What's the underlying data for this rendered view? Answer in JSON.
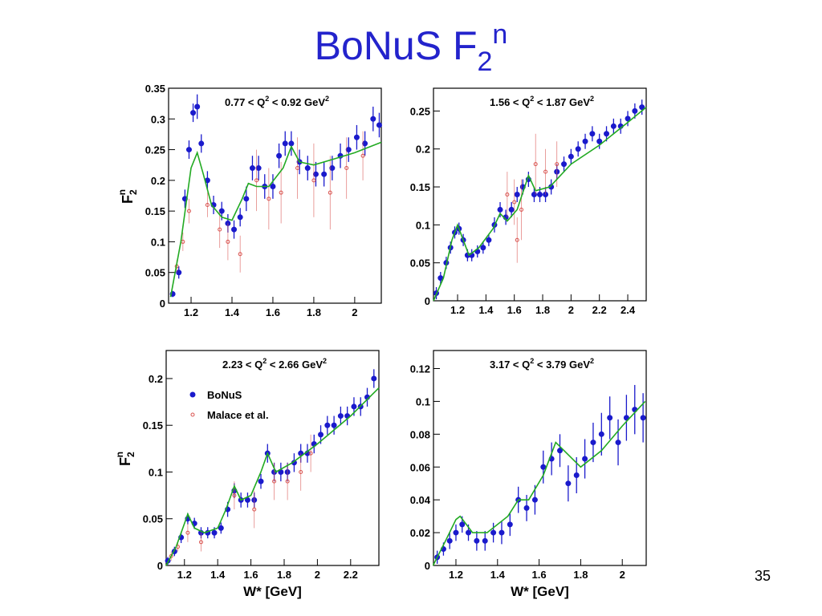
{
  "title": {
    "main": "BoNuS F",
    "sub": "2",
    "sup": "n"
  },
  "page_number": "35",
  "chart_data": [
    {
      "type": "scatter",
      "annotation": [
        "0.77 < Q",
        "2",
        " < 0.92 GeV",
        "2"
      ],
      "ylabel": {
        "main": "F",
        "sub": "2",
        "sup": "n"
      },
      "xlim": [
        1.09,
        2.13
      ],
      "ylim": [
        0,
        0.35
      ],
      "xticks": [
        1.2,
        1.4,
        1.6,
        1.8,
        2
      ],
      "yticks": [
        0,
        0.05,
        0.1,
        0.15,
        0.2,
        0.25,
        0.3,
        0.35
      ],
      "series": [
        {
          "color": "#1a1acc",
          "style": "filled-circle",
          "x": [
            1.11,
            1.14,
            1.17,
            1.19,
            1.21,
            1.23,
            1.25,
            1.28,
            1.31,
            1.35,
            1.38,
            1.41,
            1.44,
            1.47,
            1.5,
            1.53,
            1.56,
            1.6,
            1.63,
            1.66,
            1.69,
            1.73,
            1.77,
            1.81,
            1.85,
            1.89,
            1.93,
            1.97,
            2.01,
            2.05,
            2.09,
            2.12
          ],
          "values": [
            0.015,
            0.05,
            0.17,
            0.25,
            0.31,
            0.32,
            0.26,
            0.2,
            0.16,
            0.15,
            0.13,
            0.12,
            0.14,
            0.17,
            0.22,
            0.22,
            0.19,
            0.19,
            0.24,
            0.26,
            0.26,
            0.23,
            0.22,
            0.21,
            0.21,
            0.22,
            0.24,
            0.25,
            0.27,
            0.26,
            0.3,
            0.29
          ],
          "errors": [
            0.005,
            0.01,
            0.015,
            0.015,
            0.015,
            0.02,
            0.015,
            0.015,
            0.015,
            0.015,
            0.015,
            0.015,
            0.015,
            0.02,
            0.02,
            0.02,
            0.02,
            0.02,
            0.02,
            0.02,
            0.02,
            0.02,
            0.02,
            0.02,
            0.02,
            0.02,
            0.02,
            0.02,
            0.02,
            0.02,
            0.02,
            0.02
          ]
        },
        {
          "color": "#d9534f",
          "style": "open-circle",
          "x": [
            1.13,
            1.16,
            1.19,
            1.28,
            1.34,
            1.38,
            1.44,
            1.52,
            1.58,
            1.64,
            1.72,
            1.8,
            1.88,
            1.96,
            2.04
          ],
          "values": [
            0.06,
            0.1,
            0.15,
            0.16,
            0.12,
            0.1,
            0.08,
            0.2,
            0.17,
            0.18,
            0.22,
            0.2,
            0.18,
            0.22,
            0.24
          ],
          "errors": [
            0.01,
            0.015,
            0.02,
            0.02,
            0.03,
            0.03,
            0.03,
            0.05,
            0.05,
            0.05,
            0.05,
            0.06,
            0.06,
            0.05,
            0.04
          ]
        },
        {
          "color": "#22aa22",
          "style": "line",
          "x": [
            1.1,
            1.15,
            1.2,
            1.23,
            1.26,
            1.3,
            1.35,
            1.4,
            1.45,
            1.48,
            1.52,
            1.58,
            1.65,
            1.69,
            1.73,
            1.8,
            1.9,
            2.0,
            2.13
          ],
          "values": [
            0.01,
            0.1,
            0.22,
            0.245,
            0.21,
            0.16,
            0.14,
            0.135,
            0.17,
            0.195,
            0.19,
            0.19,
            0.22,
            0.255,
            0.23,
            0.225,
            0.235,
            0.245,
            0.262
          ]
        }
      ]
    },
    {
      "type": "scatter",
      "annotation": [
        "1.56 < Q",
        "2",
        " < 1.87 GeV",
        "2"
      ],
      "xlim": [
        1.03,
        2.53
      ],
      "ylim": [
        0,
        0.28
      ],
      "xticks": [
        1.2,
        1.4,
        1.6,
        1.8,
        2,
        2.2,
        2.4
      ],
      "yticks": [
        0,
        0.05,
        0.1,
        0.15,
        0.2,
        0.25
      ],
      "series": [
        {
          "color": "#1a1acc",
          "style": "filled-circle",
          "x": [
            1.05,
            1.08,
            1.12,
            1.15,
            1.18,
            1.21,
            1.24,
            1.27,
            1.3,
            1.34,
            1.38,
            1.42,
            1.46,
            1.5,
            1.54,
            1.58,
            1.62,
            1.66,
            1.7,
            1.74,
            1.78,
            1.82,
            1.86,
            1.9,
            1.95,
            2.0,
            2.05,
            2.1,
            2.15,
            2.2,
            2.25,
            2.3,
            2.35,
            2.4,
            2.45,
            2.5
          ],
          "values": [
            0.01,
            0.03,
            0.05,
            0.07,
            0.09,
            0.095,
            0.08,
            0.06,
            0.06,
            0.065,
            0.07,
            0.08,
            0.1,
            0.12,
            0.11,
            0.12,
            0.14,
            0.15,
            0.16,
            0.14,
            0.14,
            0.14,
            0.15,
            0.17,
            0.18,
            0.19,
            0.2,
            0.21,
            0.22,
            0.21,
            0.22,
            0.23,
            0.23,
            0.24,
            0.25,
            0.255
          ],
          "errors": [
            0.008,
            0.008,
            0.008,
            0.008,
            0.008,
            0.008,
            0.008,
            0.008,
            0.008,
            0.008,
            0.008,
            0.008,
            0.01,
            0.01,
            0.01,
            0.01,
            0.01,
            0.01,
            0.01,
            0.01,
            0.01,
            0.01,
            0.01,
            0.01,
            0.01,
            0.01,
            0.01,
            0.01,
            0.01,
            0.01,
            0.01,
            0.01,
            0.01,
            0.01,
            0.01,
            0.01
          ]
        },
        {
          "color": "#d9534f",
          "style": "open-circle",
          "x": [
            1.55,
            1.6,
            1.62,
            1.65,
            1.75,
            1.82,
            1.9
          ],
          "values": [
            0.14,
            0.13,
            0.08,
            0.12,
            0.18,
            0.17,
            0.18
          ],
          "errors": [
            0.03,
            0.03,
            0.03,
            0.04,
            0.04,
            0.03,
            0.03
          ]
        },
        {
          "color": "#22aa22",
          "style": "line",
          "x": [
            1.03,
            1.1,
            1.16,
            1.2,
            1.24,
            1.28,
            1.35,
            1.45,
            1.5,
            1.55,
            1.62,
            1.7,
            1.75,
            1.85,
            2.0,
            2.2,
            2.4,
            2.53
          ],
          "values": [
            0,
            0.03,
            0.08,
            0.1,
            0.08,
            0.06,
            0.07,
            0.095,
            0.115,
            0.105,
            0.12,
            0.165,
            0.145,
            0.15,
            0.18,
            0.205,
            0.235,
            0.255
          ]
        }
      ]
    },
    {
      "type": "scatter",
      "annotation": [
        "2.23 < Q",
        "2",
        " < 2.66 GeV",
        "2"
      ],
      "ylabel": {
        "main": "F",
        "sub": "2",
        "sup": "n"
      },
      "xlabel": "W* [GeV]",
      "xlim": [
        1.09,
        2.37
      ],
      "ylim": [
        0,
        0.23
      ],
      "xticks": [
        1.2,
        1.4,
        1.6,
        1.8,
        2,
        2.2
      ],
      "yticks": [
        0,
        0.05,
        0.1,
        0.15,
        0.2
      ],
      "series": [
        {
          "name": "BoNuS",
          "color": "#1a1acc",
          "style": "filled-circle",
          "x": [
            1.1,
            1.14,
            1.18,
            1.22,
            1.26,
            1.3,
            1.34,
            1.38,
            1.42,
            1.46,
            1.5,
            1.54,
            1.58,
            1.62,
            1.66,
            1.7,
            1.74,
            1.78,
            1.82,
            1.86,
            1.9,
            1.94,
            1.98,
            2.02,
            2.06,
            2.1,
            2.14,
            2.18,
            2.22,
            2.26,
            2.3,
            2.34
          ],
          "values": [
            0.005,
            0.015,
            0.03,
            0.05,
            0.045,
            0.035,
            0.035,
            0.035,
            0.04,
            0.06,
            0.08,
            0.07,
            0.07,
            0.07,
            0.09,
            0.12,
            0.1,
            0.1,
            0.1,
            0.11,
            0.12,
            0.12,
            0.13,
            0.14,
            0.15,
            0.15,
            0.16,
            0.16,
            0.17,
            0.17,
            0.18,
            0.2
          ],
          "errors": [
            0.004,
            0.005,
            0.006,
            0.006,
            0.006,
            0.006,
            0.006,
            0.006,
            0.006,
            0.008,
            0.008,
            0.008,
            0.008,
            0.008,
            0.008,
            0.01,
            0.01,
            0.01,
            0.01,
            0.01,
            0.01,
            0.01,
            0.01,
            0.01,
            0.01,
            0.01,
            0.01,
            0.01,
            0.01,
            0.01,
            0.01,
            0.01
          ]
        },
        {
          "name": "Malace et al.",
          "color": "#d9534f",
          "style": "open-circle",
          "x": [
            1.12,
            1.16,
            1.22,
            1.3,
            1.5,
            1.62,
            1.74,
            1.82,
            1.9,
            1.96
          ],
          "values": [
            0.01,
            0.02,
            0.035,
            0.025,
            0.075,
            0.06,
            0.09,
            0.09,
            0.1,
            0.12
          ],
          "errors": [
            0.005,
            0.005,
            0.01,
            0.01,
            0.015,
            0.02,
            0.02,
            0.02,
            0.02,
            0.02
          ]
        },
        {
          "color": "#22aa22",
          "style": "line",
          "x": [
            1.09,
            1.15,
            1.2,
            1.22,
            1.26,
            1.32,
            1.4,
            1.45,
            1.5,
            1.54,
            1.6,
            1.66,
            1.7,
            1.75,
            1.85,
            2.0,
            2.2,
            2.37
          ],
          "values": [
            0,
            0.02,
            0.045,
            0.055,
            0.04,
            0.035,
            0.04,
            0.06,
            0.085,
            0.07,
            0.075,
            0.1,
            0.12,
            0.1,
            0.11,
            0.13,
            0.16,
            0.19
          ]
        }
      ]
    },
    {
      "type": "scatter",
      "annotation": [
        "3.17 < Q",
        "2",
        " < 3.79 GeV",
        "2"
      ],
      "xlabel": "W* [GeV]",
      "xlim": [
        1.092,
        2.115
      ],
      "ylim": [
        0,
        0.131
      ],
      "xticks": [
        1.2,
        1.4,
        1.6,
        1.8,
        2
      ],
      "yticks": [
        0,
        0.02,
        0.04,
        0.06,
        0.08,
        0.1,
        0.12
      ],
      "series": [
        {
          "color": "#1a1acc",
          "style": "filled-circle",
          "x": [
            1.11,
            1.14,
            1.17,
            1.2,
            1.23,
            1.26,
            1.3,
            1.34,
            1.38,
            1.42,
            1.46,
            1.5,
            1.54,
            1.58,
            1.62,
            1.66,
            1.7,
            1.74,
            1.78,
            1.82,
            1.86,
            1.9,
            1.94,
            1.98,
            2.02,
            2.06,
            2.1
          ],
          "values": [
            0.005,
            0.01,
            0.015,
            0.02,
            0.025,
            0.02,
            0.015,
            0.015,
            0.02,
            0.02,
            0.025,
            0.04,
            0.035,
            0.04,
            0.06,
            0.065,
            0.07,
            0.05,
            0.055,
            0.065,
            0.075,
            0.08,
            0.09,
            0.075,
            0.09,
            0.095,
            0.09
          ],
          "errors": [
            0.004,
            0.004,
            0.005,
            0.005,
            0.005,
            0.005,
            0.006,
            0.006,
            0.006,
            0.007,
            0.007,
            0.008,
            0.008,
            0.009,
            0.01,
            0.01,
            0.01,
            0.011,
            0.011,
            0.012,
            0.012,
            0.013,
            0.013,
            0.014,
            0.014,
            0.015,
            0.015
          ]
        },
        {
          "color": "#22aa22",
          "style": "line",
          "x": [
            1.09,
            1.15,
            1.2,
            1.22,
            1.28,
            1.35,
            1.45,
            1.5,
            1.55,
            1.62,
            1.68,
            1.72,
            1.8,
            1.9,
            2.0,
            2.11
          ],
          "values": [
            0,
            0.015,
            0.028,
            0.03,
            0.02,
            0.02,
            0.03,
            0.04,
            0.04,
            0.055,
            0.075,
            0.07,
            0.06,
            0.07,
            0.085,
            0.1
          ]
        }
      ]
    }
  ]
}
